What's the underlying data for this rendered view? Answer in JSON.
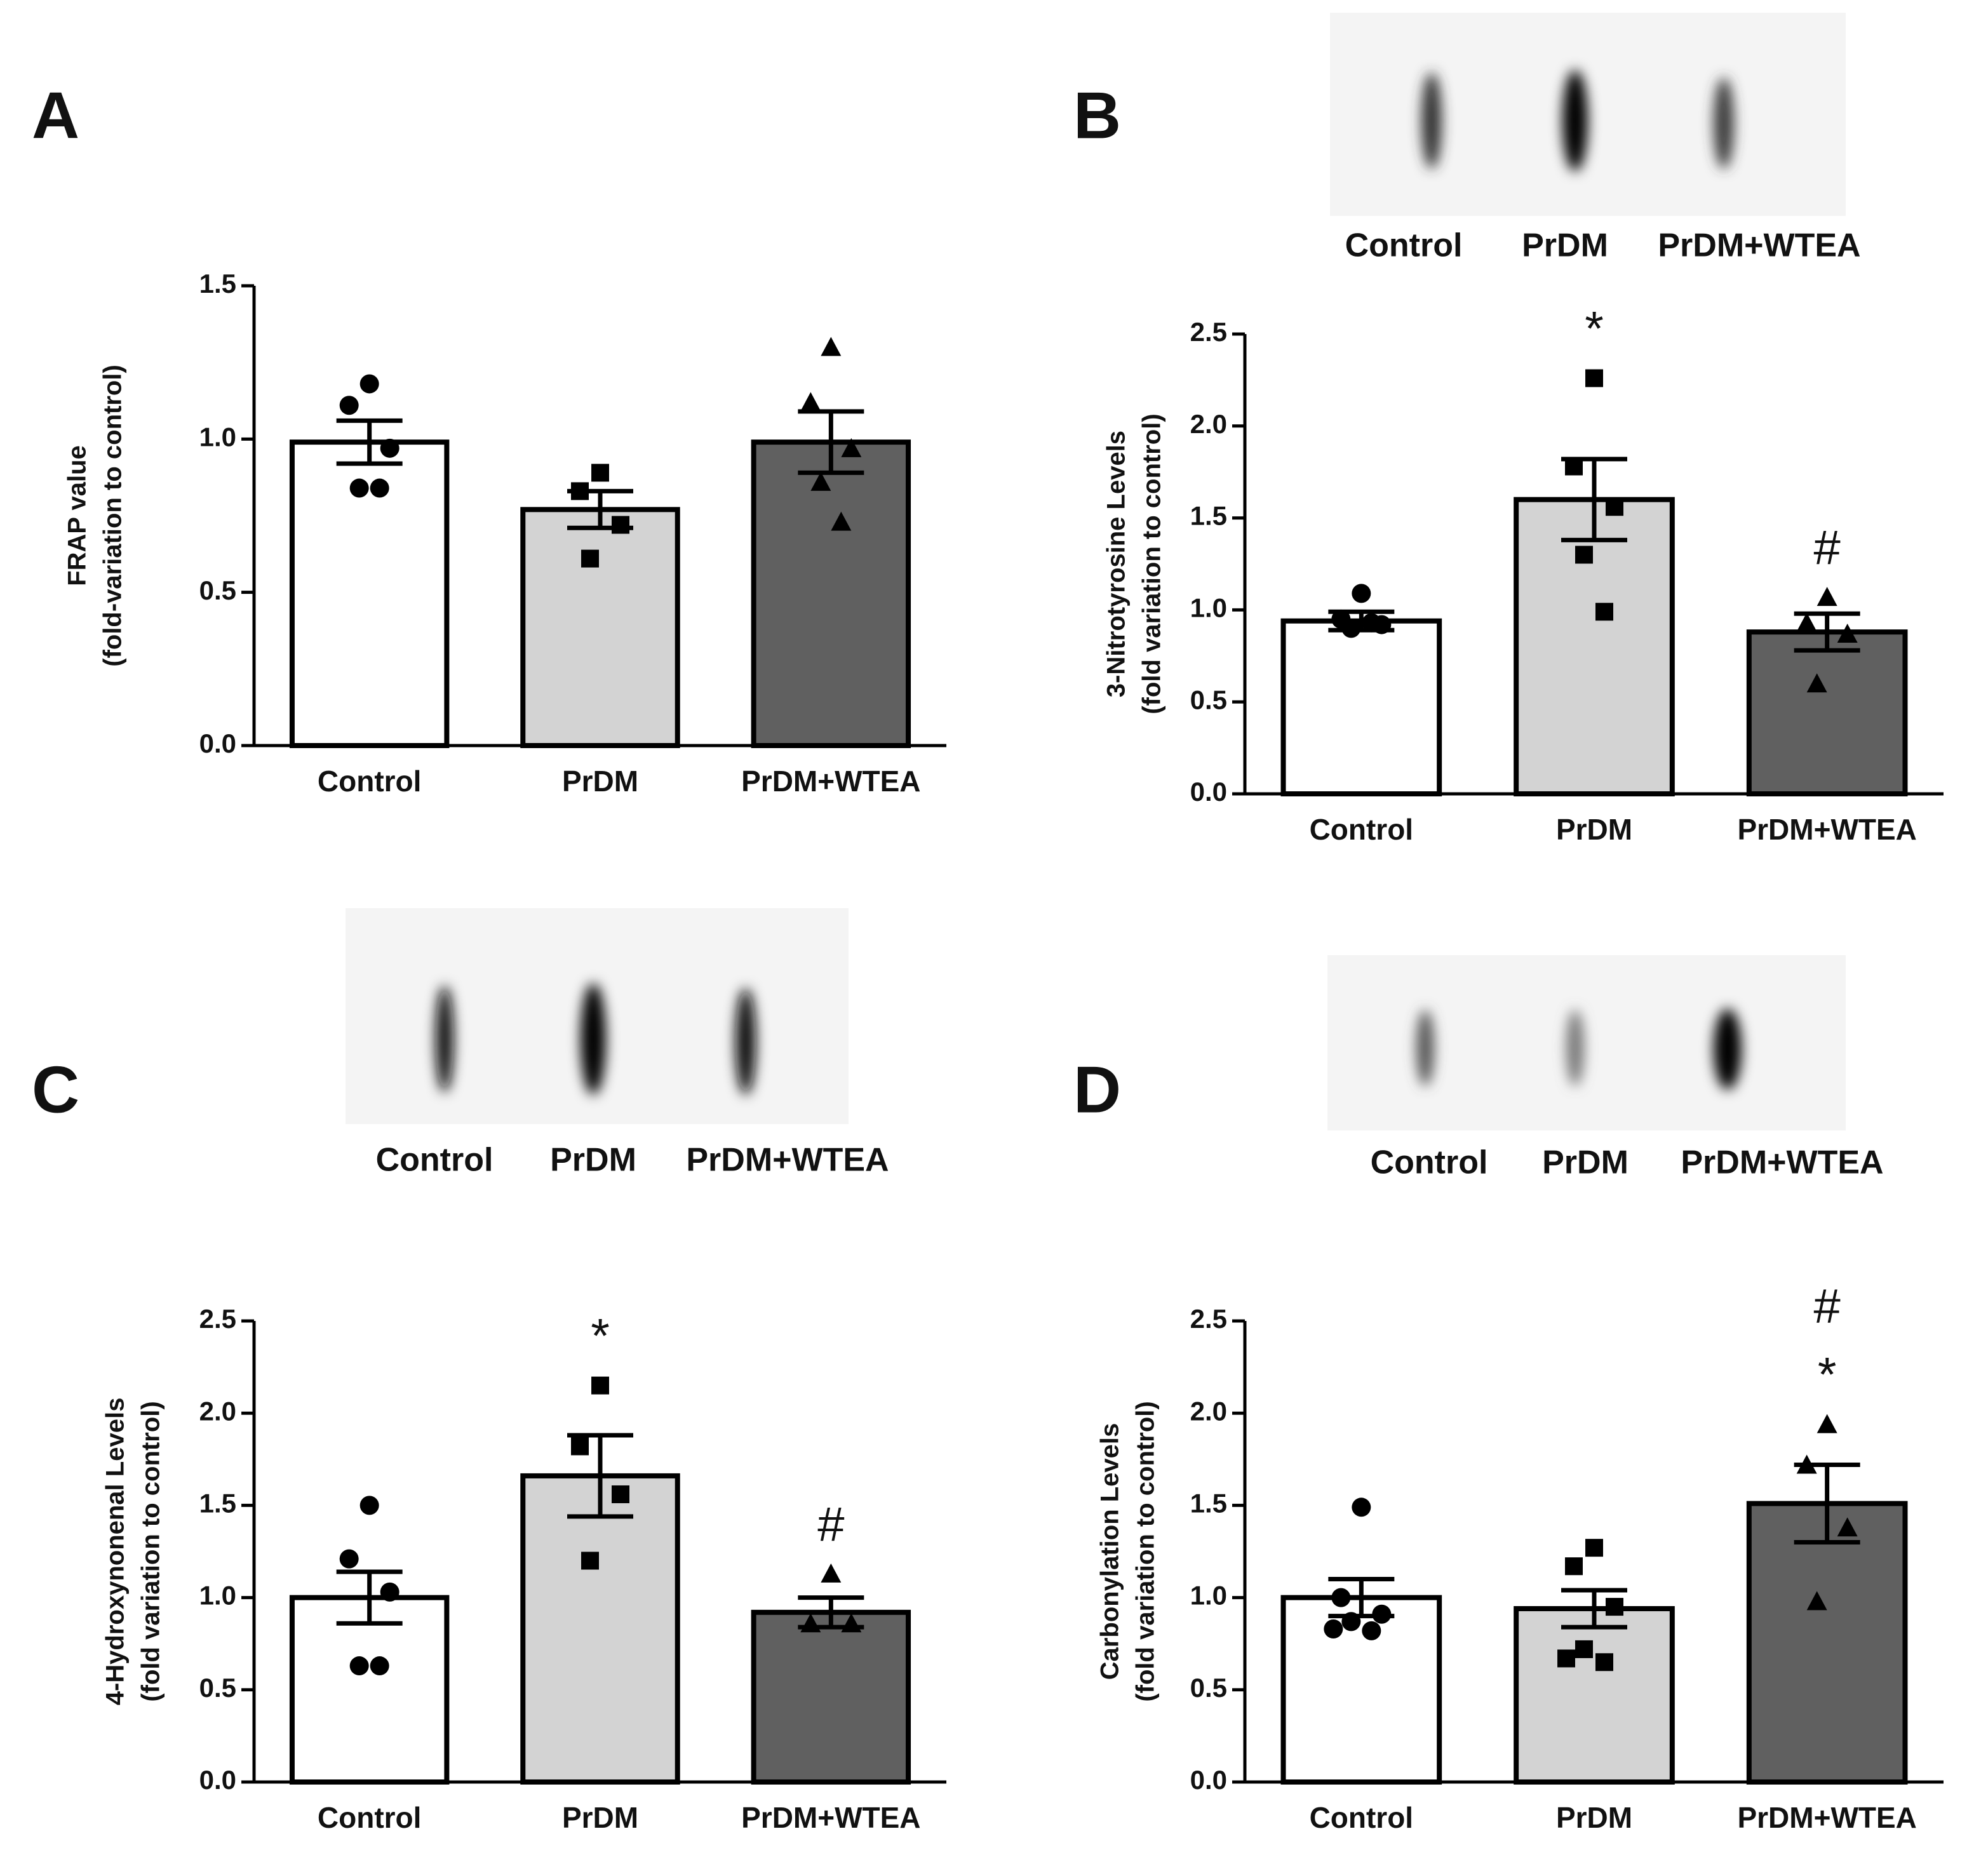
{
  "chart_data": [
    {
      "type": "bar",
      "panel": "A",
      "ylabel": [
        "FRAP value",
        "(fold-variation to control)"
      ],
      "categories": [
        "Control",
        "PrDM",
        "PrDM+WTEA"
      ],
      "values": [
        0.99,
        0.77,
        0.99
      ],
      "errors": [
        0.07,
        0.06,
        0.1
      ],
      "points": [
        [
          1.18,
          1.11,
          0.97,
          0.84,
          0.84
        ],
        [
          0.89,
          0.83,
          0.72,
          0.61
        ],
        [
          1.3,
          1.12,
          0.97,
          0.86,
          0.73
        ]
      ],
      "colors": [
        "#ffffff",
        "#d3d3d3",
        "#606060"
      ],
      "markers": [
        "circle",
        "square",
        "triangle"
      ],
      "ylim": [
        0,
        1.5
      ],
      "yticks": [
        {
          "value": 0,
          "label": "0.0"
        },
        {
          "value": 0.5,
          "label": "0.5"
        },
        {
          "value": 1,
          "label": "1.0"
        },
        {
          "value": 1.5,
          "label": "1.5"
        }
      ]
    },
    {
      "type": "bar",
      "panel": "B",
      "ylabel": [
        "3-Nitrotyrosine Levels",
        "(fold variation to control)"
      ],
      "blot_labels": [
        "Control",
        "PrDM",
        "PrDM+WTEA"
      ],
      "categories": [
        "Control",
        "PrDM",
        "PrDM+WTEA"
      ],
      "values": [
        0.94,
        1.6,
        0.88
      ],
      "errors": [
        0.05,
        0.22,
        0.1
      ],
      "points": [
        [
          1.09,
          0.95,
          0.92,
          0.9,
          0.93
        ],
        [
          2.26,
          1.78,
          1.56,
          1.3,
          0.99
        ],
        [
          1.07,
          0.93,
          0.87,
          0.6
        ]
      ],
      "colors": [
        "#ffffff",
        "#d3d3d3",
        "#606060"
      ],
      "markers": [
        "circle",
        "square",
        "triangle"
      ],
      "annotations": [
        {
          "text": "*",
          "category": "PrDM"
        },
        {
          "text": "#",
          "category": "PrDM+WTEA"
        }
      ],
      "ylim": [
        0,
        2.5
      ],
      "yticks": [
        {
          "value": 0,
          "label": "0.0"
        },
        {
          "value": 0.5,
          "label": "0.5"
        },
        {
          "value": 1,
          "label": "1.0"
        },
        {
          "value": 1.5,
          "label": "1.5"
        },
        {
          "value": 2,
          "label": "2.0"
        },
        {
          "value": 2.5,
          "label": "2.5"
        }
      ]
    },
    {
      "type": "bar",
      "panel": "C",
      "ylabel": [
        "4-Hydroxynonenal Levels",
        "(fold variation to control)"
      ],
      "blot_labels": [
        "Control",
        "PrDM",
        "PrDM+WTEA"
      ],
      "categories": [
        "Control",
        "PrDM",
        "PrDM+WTEA"
      ],
      "values": [
        1.0,
        1.66,
        0.92
      ],
      "errors": [
        0.14,
        0.22,
        0.08
      ],
      "points": [
        [
          1.5,
          1.21,
          1.03,
          0.63,
          0.63
        ],
        [
          2.15,
          1.82,
          1.56,
          1.2
        ],
        [
          1.13,
          0.86,
          0.86
        ]
      ],
      "colors": [
        "#ffffff",
        "#d3d3d3",
        "#606060"
      ],
      "markers": [
        "circle",
        "square",
        "triangle"
      ],
      "annotations": [
        {
          "text": "*",
          "category": "PrDM"
        },
        {
          "text": "#",
          "category": "PrDM+WTEA"
        }
      ],
      "ylim": [
        0,
        2.5
      ],
      "yticks": [
        {
          "value": 0,
          "label": "0.0"
        },
        {
          "value": 0.5,
          "label": "0.5"
        },
        {
          "value": 1,
          "label": "1.0"
        },
        {
          "value": 1.5,
          "label": "1.5"
        },
        {
          "value": 2,
          "label": "2.0"
        },
        {
          "value": 2.5,
          "label": "2.5"
        }
      ]
    },
    {
      "type": "bar",
      "panel": "D",
      "ylabel": [
        "Carbonylation Levels",
        "(fold variation to control)"
      ],
      "blot_labels": [
        "Control",
        "PrDM",
        "PrDM+WTEA"
      ],
      "categories": [
        "Control",
        "PrDM",
        "PrDM+WTEA"
      ],
      "values": [
        1.0,
        0.94,
        1.51
      ],
      "errors": [
        0.1,
        0.1,
        0.21
      ],
      "points": [
        [
          1.49,
          1.0,
          0.91,
          0.87,
          0.82,
          0.83
        ],
        [
          1.27,
          1.17,
          0.95,
          0.72,
          0.65,
          0.67
        ],
        [
          1.94,
          1.72,
          1.38,
          0.98
        ]
      ],
      "colors": [
        "#ffffff",
        "#d3d3d3",
        "#606060"
      ],
      "markers": [
        "circle",
        "square",
        "triangle"
      ],
      "annotations": [
        {
          "text": "*",
          "category": "PrDM+WTEA"
        },
        {
          "text": "#",
          "category": "PrDM+WTEA"
        }
      ],
      "ylim": [
        0,
        2.5
      ],
      "yticks": [
        {
          "value": 0,
          "label": "0.0"
        },
        {
          "value": 0.5,
          "label": "0.5"
        },
        {
          "value": 1,
          "label": "1.0"
        },
        {
          "value": 1.5,
          "label": "1.5"
        },
        {
          "value": 2,
          "label": "2.0"
        },
        {
          "value": 2.5,
          "label": "2.5"
        }
      ]
    }
  ]
}
